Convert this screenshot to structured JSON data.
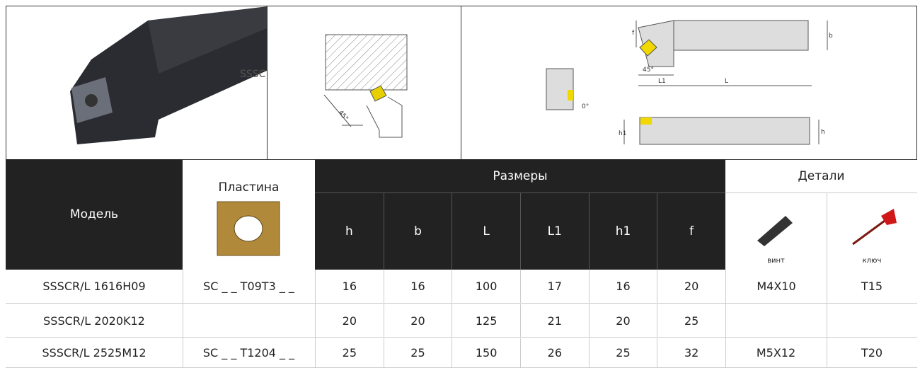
{
  "drawings": {
    "tool_marking": "SSSC",
    "side_angle": "45°",
    "labels": {
      "f": "f",
      "b": "b",
      "angle": "45°",
      "L1": "L1",
      "L": "L",
      "zero": "0°",
      "h1": "h1",
      "h": "h"
    }
  },
  "table": {
    "headers": {
      "model": "Модель",
      "insert": "Пластина",
      "dimensions": "Размеры",
      "details": "Детали",
      "dims": [
        "h",
        "b",
        "L",
        "L1",
        "h1",
        "f"
      ],
      "screw": "винт",
      "key": "ключ"
    },
    "rows": [
      {
        "model": "SSSCR/L  1616H09",
        "insert": "SC _ _ T09T3 _ _",
        "dims": [
          16,
          16,
          100,
          17,
          16,
          20
        ],
        "screw": "M4X10",
        "key": "T15"
      },
      {
        "model": "SSSCR/L 2020K12",
        "dims": [
          20,
          20,
          125,
          21,
          20,
          25
        ]
      },
      {
        "model": "SSSCR/L  2525M12",
        "dims": [
          25,
          25,
          150,
          26,
          25,
          32
        ]
      }
    ],
    "merged": {
      "insert": "SC _ _ T1204 _ _",
      "screw": "M5X12",
      "key": "T20"
    }
  }
}
